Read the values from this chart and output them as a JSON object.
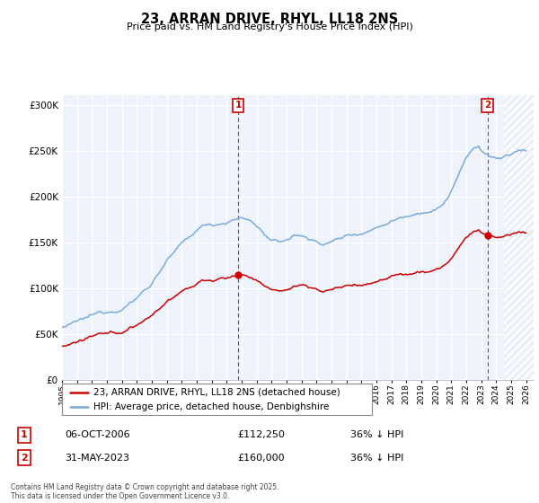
{
  "title": "23, ARRAN DRIVE, RHYL, LL18 2NS",
  "subtitle": "Price paid vs. HM Land Registry's House Price Index (HPI)",
  "ylim": [
    0,
    310000
  ],
  "xlim_start": 1995.0,
  "xlim_end": 2026.5,
  "purchase1": {
    "date_num": 2006.77,
    "price": 112250,
    "label": "1",
    "note": "06-OCT-2006",
    "amount": "£112,250",
    "hpi": "36% ↓ HPI"
  },
  "purchase2": {
    "date_num": 2023.41,
    "price": 160000,
    "label": "2",
    "note": "31-MAY-2023",
    "amount": "£160,000",
    "hpi": "36% ↓ HPI"
  },
  "legend_line1": "23, ARRAN DRIVE, RHYL, LL18 2NS (detached house)",
  "legend_line2": "HPI: Average price, detached house, Denbighshire",
  "footer": "Contains HM Land Registry data © Crown copyright and database right 2025.\nThis data is licensed under the Open Government Licence v3.0.",
  "line_color_red": "#cc0000",
  "line_color_blue": "#7aabdb",
  "fill_color_blue": "#ddeeff",
  "background_plot": "#eef3fb",
  "grid_color": "#ffffff",
  "annotation_box_color": "#cc0000",
  "hatch_color": "#ccddee",
  "hatch_start": 2024.5,
  "x_tick_years": [
    1995,
    1996,
    1997,
    1998,
    1999,
    2000,
    2001,
    2002,
    2003,
    2004,
    2005,
    2006,
    2007,
    2008,
    2009,
    2010,
    2011,
    2012,
    2013,
    2014,
    2015,
    2016,
    2017,
    2018,
    2019,
    2020,
    2021,
    2022,
    2023,
    2024,
    2025,
    2026
  ]
}
